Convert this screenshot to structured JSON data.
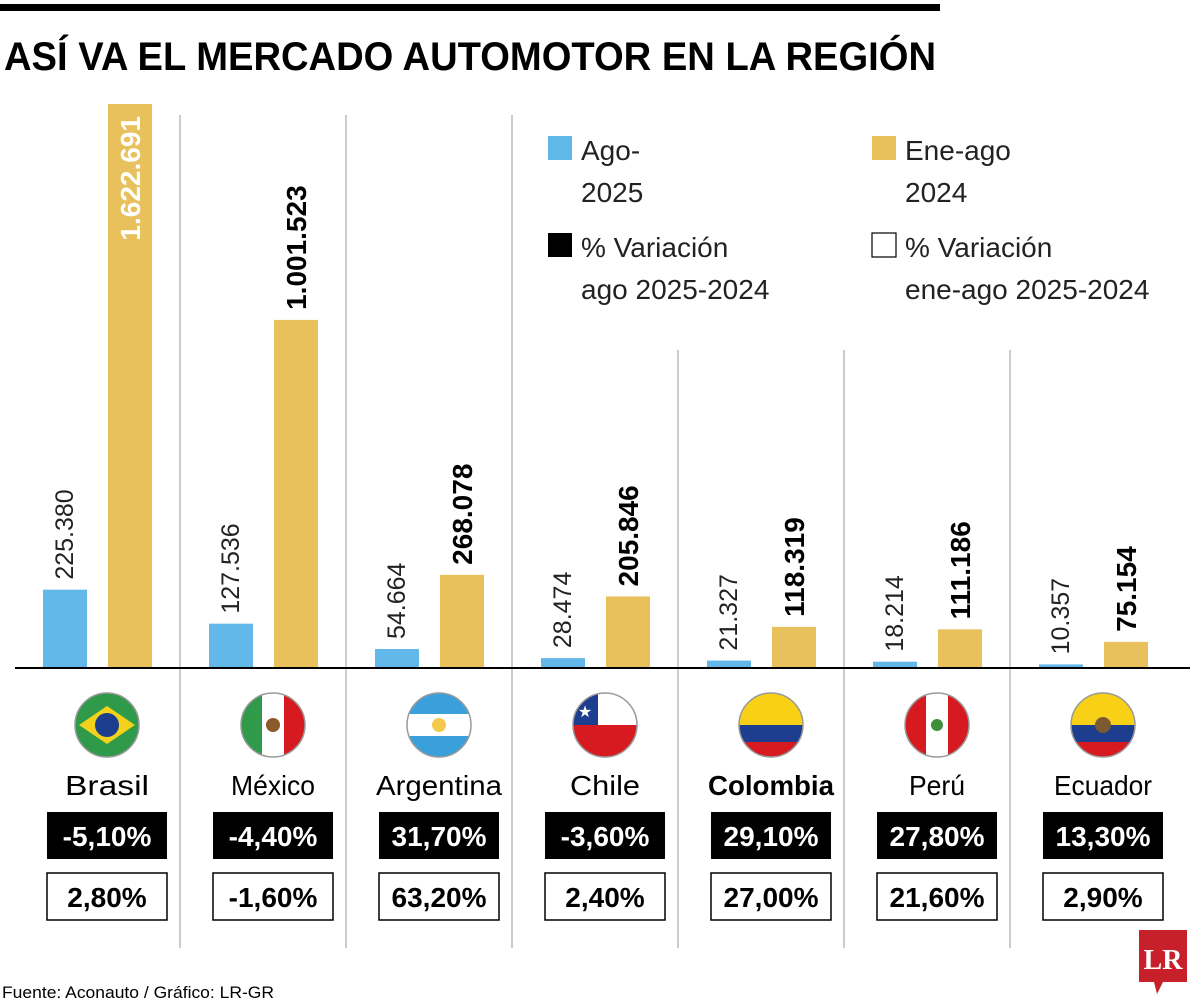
{
  "chart_data": {
    "type": "bar",
    "title": "ASÍ VA EL MERCADO AUTOMOTOR EN LA REGIÓN",
    "categories": [
      "Brasil",
      "México",
      "Argentina",
      "Chile",
      "Colombia",
      "Perú",
      "Ecuador"
    ],
    "highlight_category": "Colombia",
    "series": [
      {
        "name": "Ago-2025",
        "legend_lines": [
          "Ago-",
          "2025"
        ],
        "color": "#62b8e8",
        "values": [
          225380,
          127536,
          54664,
          28474,
          21327,
          18214,
          10357
        ],
        "labels": [
          "225.380",
          "127.536",
          "54.664",
          "28.474",
          "21.327",
          "18.214",
          "10.357"
        ]
      },
      {
        "name": "Ene-ago 2024",
        "legend_lines": [
          "Ene-ago",
          "2024"
        ],
        "color": "#e8c05c",
        "values": [
          1622691,
          1001523,
          268078,
          205846,
          118319,
          111186,
          75154
        ],
        "labels": [
          "1.622.691",
          "1.001.523",
          "268.078",
          "205.846",
          "118.319",
          "111.186",
          "75.154"
        ]
      }
    ],
    "variation_legend": [
      {
        "name": "% Variación ago 2025-2024",
        "lines": [
          "% Variación",
          "ago 2025-2024"
        ],
        "style": "black"
      },
      {
        "name": "% Variación ene-ago 2025-2024",
        "lines": [
          "% Variación",
          "ene-ago 2025-2024"
        ],
        "style": "white"
      }
    ],
    "variation_aug": [
      "-5,10%",
      "-4,40%",
      "31,70%",
      "-3,60%",
      "29,10%",
      "27,80%",
      "13,30%"
    ],
    "variation_ytd": [
      "2,80%",
      "-1,60%",
      "63,20%",
      "2,40%",
      "27,00%",
      "21,60%",
      "2,90%"
    ],
    "ylim": [
      0,
      1622691
    ],
    "grid": false,
    "legend_position": "top-right"
  },
  "footer": {
    "source": "Fuente: Aconauto / Gráfico: LR-GR",
    "logo": "LR"
  },
  "colors": {
    "logo": "#c8202a",
    "axis": "#000000",
    "divider": "#bbbbbb"
  }
}
